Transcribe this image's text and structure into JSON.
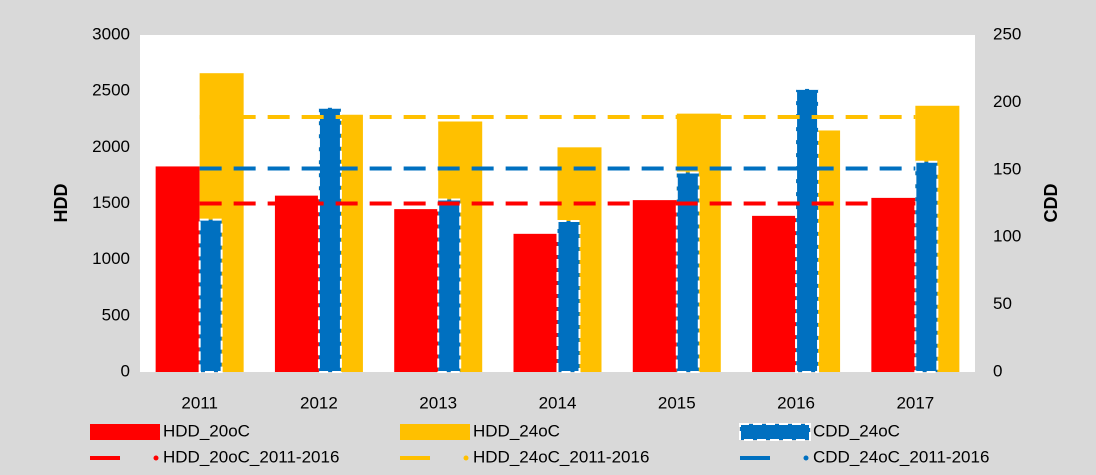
{
  "chart_data": {
    "type": "bar",
    "categories": [
      "2011",
      "2012",
      "2013",
      "2014",
      "2015",
      "2016",
      "2017"
    ],
    "y_label": "HDD",
    "y2_label": "CDD",
    "ylim": [
      0,
      3000
    ],
    "yticks": [
      0,
      500,
      1000,
      1500,
      2000,
      2500,
      3000
    ],
    "y2lim": [
      0,
      250
    ],
    "y2ticks": [
      0,
      50,
      100,
      150,
      200,
      250
    ],
    "series": [
      {
        "name": "HDD_20oC",
        "type": "bar",
        "axis": "y",
        "color": "#ff0000",
        "values": [
          1830,
          1570,
          1450,
          1230,
          1530,
          1390,
          1550
        ]
      },
      {
        "name": "HDD_24oC",
        "type": "bar",
        "axis": "y",
        "color": "#ffc000",
        "values": [
          2660,
          2290,
          2230,
          2000,
          2300,
          2150,
          2370
        ]
      },
      {
        "name": "CDD_24oC",
        "type": "bar",
        "axis": "y2",
        "color": "#0070c0",
        "values": [
          113,
          196,
          128,
          112,
          148,
          210,
          156
        ]
      },
      {
        "name": "HDD_20oC_2011-2016",
        "type": "line",
        "axis": "y",
        "color": "#ff0000",
        "values": [
          1500,
          1500,
          1500,
          1500,
          1500,
          1500,
          1500
        ]
      },
      {
        "name": "HDD_24oC_2011-2016",
        "type": "line",
        "axis": "y",
        "color": "#ffc000",
        "values": [
          2270,
          2270,
          2270,
          2270,
          2270,
          2270,
          2270
        ]
      },
      {
        "name": "CDD_24oC_2011-2016",
        "type": "line",
        "axis": "y2",
        "color": "#0070c0",
        "values": [
          151,
          151,
          151,
          151,
          151,
          151,
          151
        ]
      }
    ]
  }
}
